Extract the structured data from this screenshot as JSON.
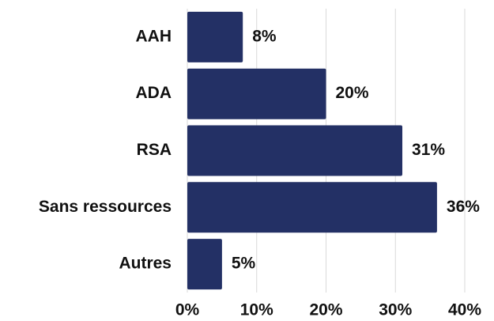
{
  "chart_data": {
    "type": "barh",
    "categories": [
      "AAH",
      "ADA",
      "RSA",
      "Sans ressources",
      "Autres"
    ],
    "values": [
      8,
      20,
      31,
      36,
      5
    ],
    "value_labels": [
      "8%",
      "20%",
      "31%",
      "36%",
      "5%"
    ],
    "color": "#233065",
    "xlim": [
      0,
      40
    ],
    "xticks": [
      {
        "value": 0,
        "label": "0%"
      },
      {
        "value": 10,
        "label": "10%"
      },
      {
        "value": 20,
        "label": "20%"
      },
      {
        "value": 30,
        "label": "30%"
      },
      {
        "value": 40,
        "label": "40%"
      }
    ],
    "grid": true
  }
}
